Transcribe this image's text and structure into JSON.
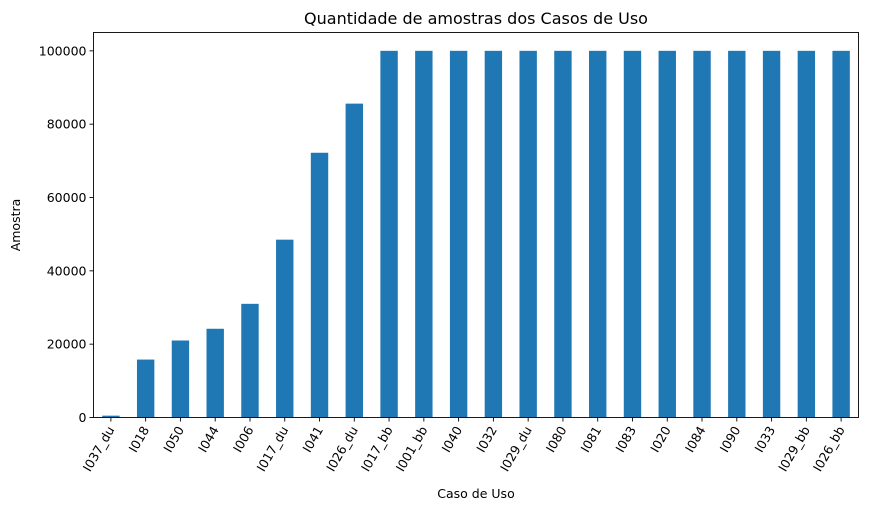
{
  "chart_data": {
    "type": "bar",
    "title": "Quantidade de amostras dos Casos de Uso",
    "xlabel": "Caso de Uso",
    "ylabel": "Amostra",
    "categories": [
      "I037_du",
      "I018",
      "I050",
      "I044",
      "I006",
      "I017_du",
      "I041",
      "I026_du",
      "I017_bb",
      "I001_bb",
      "I040",
      "I032",
      "I029_du",
      "I080",
      "I081",
      "I083",
      "I020",
      "I084",
      "I090",
      "I033",
      "I029_bb",
      "I026_bb"
    ],
    "values": [
      500,
      15800,
      21000,
      24200,
      31000,
      48500,
      72200,
      85600,
      100000,
      100000,
      100000,
      100000,
      100000,
      100000,
      100000,
      100000,
      100000,
      100000,
      100000,
      100000,
      100000,
      100000
    ],
    "yticks": [
      0,
      20000,
      40000,
      60000,
      80000,
      100000
    ],
    "ylim": [
      0,
      105000
    ],
    "bar_color": "#1f77b4",
    "grid": false,
    "legend": false
  }
}
